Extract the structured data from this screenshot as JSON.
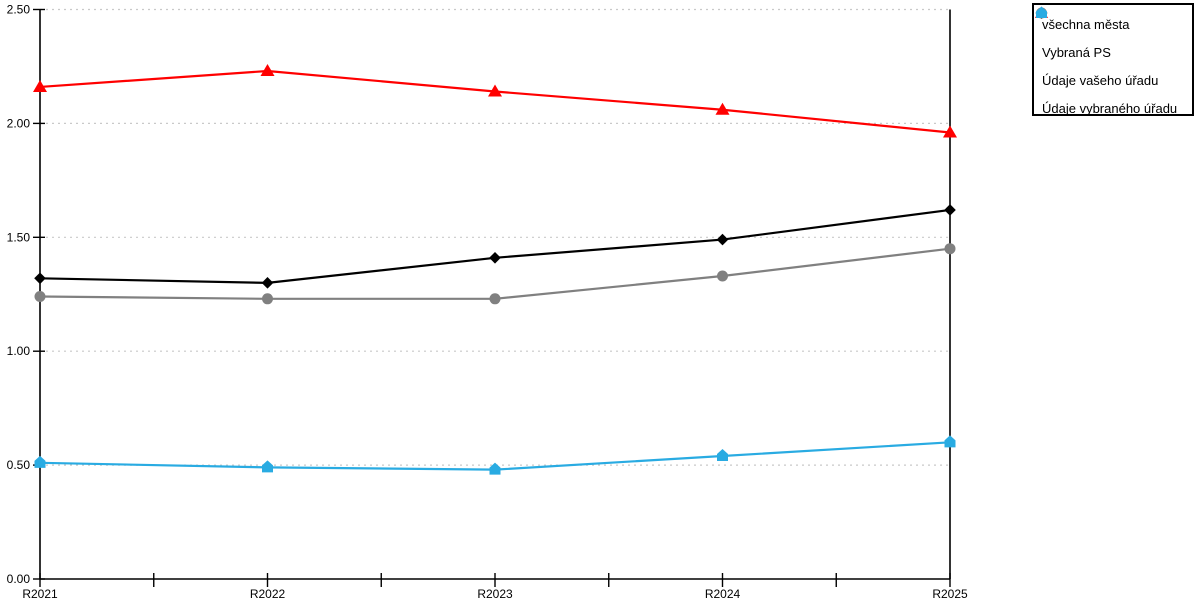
{
  "chart_data": {
    "type": "line",
    "title": "",
    "xlabel": "",
    "ylabel": "",
    "categories": [
      "R2021",
      "R2022",
      "R2023",
      "R2024",
      "R2025"
    ],
    "series": [
      {
        "name": "všechna města",
        "color": "#000000",
        "marker": "diamond",
        "values": [
          1.32,
          1.3,
          1.41,
          1.49,
          1.62
        ]
      },
      {
        "name": "Vybraná PS",
        "color": "#808080",
        "marker": "circle",
        "values": [
          1.24,
          1.23,
          1.23,
          1.33,
          1.45
        ]
      },
      {
        "name": "Údaje vašeho úřadu",
        "color": "#FF0000",
        "marker": "triangle",
        "values": [
          2.16,
          2.23,
          2.14,
          2.06,
          1.96
        ]
      },
      {
        "name": "Údaje vybraného úřadu",
        "color": "#29ABE2",
        "marker": "pentagon",
        "values": [
          0.51,
          0.49,
          0.48,
          0.54,
          0.6
        ]
      }
    ],
    "ylim": [
      0,
      2.5
    ],
    "ytick_step": 0.5,
    "ytick_labels": [
      "0.00",
      "0.50",
      "1.00",
      "1.50",
      "2.00",
      "2.50"
    ],
    "grid": "horizontal-dashed",
    "legend_position": "top-right"
  },
  "colors": {
    "background": "#ffffff",
    "axis": "#000000",
    "gridline": "#c9c9c9",
    "legend_border": "#000000"
  }
}
